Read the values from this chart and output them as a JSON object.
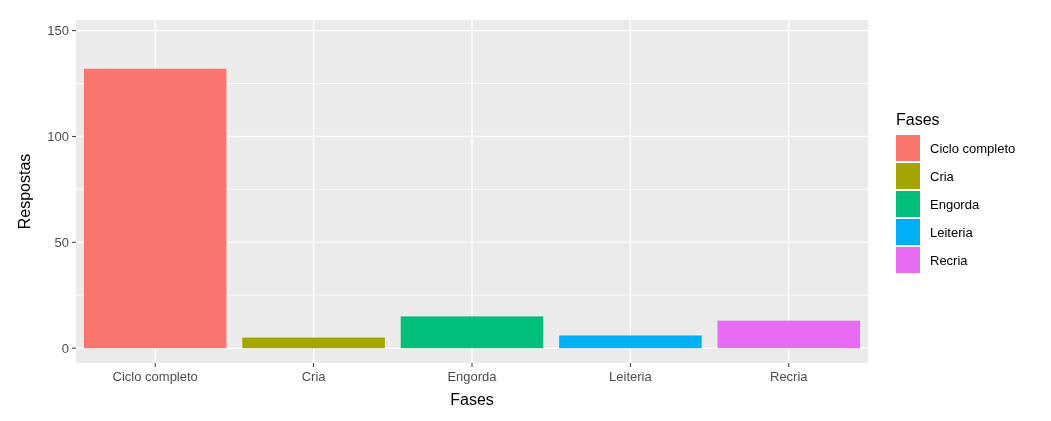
{
  "chart_data": {
    "type": "bar",
    "xlabel": "Fases",
    "ylabel": "Respostas",
    "legend_title": "Fases",
    "categories": [
      "Ciclo completo",
      "Cria",
      "Engorda",
      "Leiteria",
      "Recria"
    ],
    "series": [
      {
        "name": "Ciclo completo",
        "color": "#f8766d",
        "values": [
          132,
          null,
          null,
          null,
          null
        ]
      },
      {
        "name": "Cria",
        "color": "#a3a500",
        "values": [
          null,
          5,
          null,
          null,
          null
        ]
      },
      {
        "name": "Engorda",
        "color": "#00bf7d",
        "values": [
          null,
          null,
          15,
          null,
          null
        ]
      },
      {
        "name": "Leiteria",
        "color": "#00b0f6",
        "values": [
          null,
          null,
          null,
          6,
          null
        ]
      },
      {
        "name": "Recria",
        "color": "#e76bf3",
        "values": [
          null,
          null,
          null,
          null,
          13
        ]
      }
    ],
    "ylim": [
      -7,
      155
    ],
    "yticks": [
      0,
      50,
      100,
      150
    ],
    "grid": true,
    "legend": "right"
  }
}
